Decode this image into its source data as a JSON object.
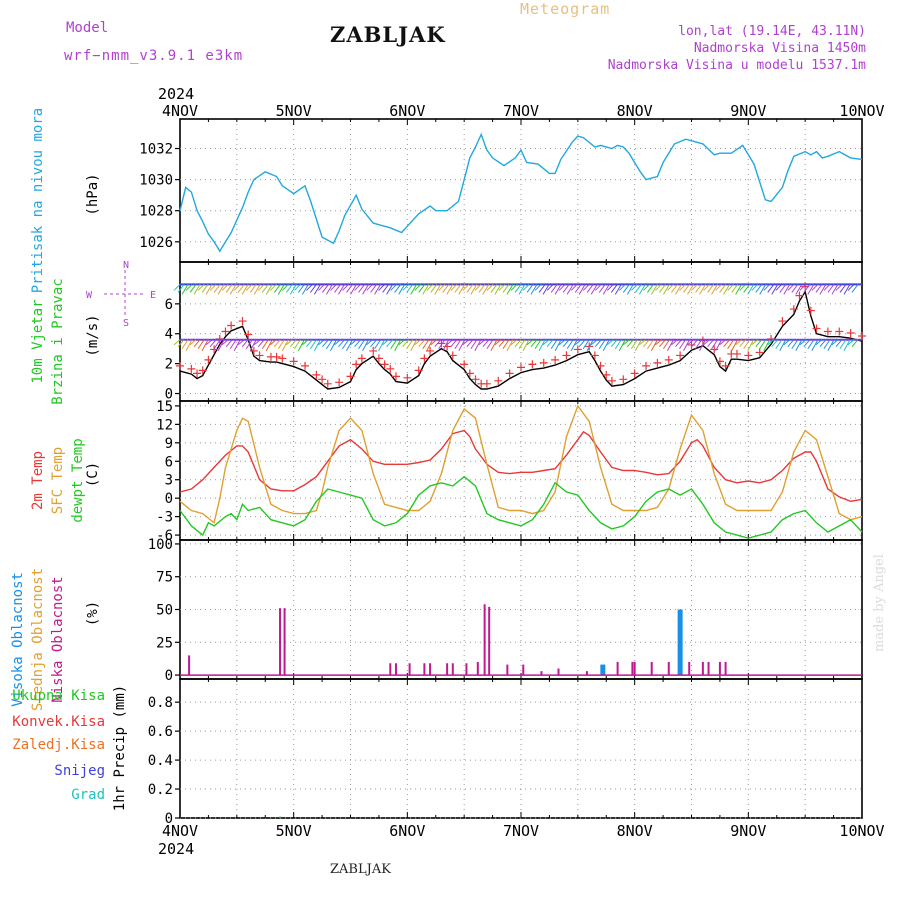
{
  "header": {
    "title": "ZABLJAK",
    "model_label": "Model",
    "model_name": "wrf−nmm_v3.9.1  e3km",
    "meteogram": "Meteogram",
    "lonlat": "lon,lat (19.14E, 43.11N)",
    "altitude": "Nadmorska Visina 1450m",
    "model_altitude": "Nadmorska Visina u modelu 1537.1m"
  },
  "footer": {
    "station": "ZABLJAK",
    "credit": "made by Angel"
  },
  "colors": {
    "pressure": "#22a8e0",
    "wind_green": "#22c822",
    "wind_red": "#e83838",
    "wind_purple": "#b040d0",
    "temp2m": "#e83838",
    "sfc": "#e0a030",
    "dewpt": "#22c822",
    "cloud_high": "#1890e8",
    "cloud_mid": "#e0a030",
    "cloud_low": "#c01890",
    "precip_total": "#22c822",
    "precip_conv": "#e83838",
    "precip_frz": "#f07020",
    "snow": "#4040e0",
    "hail": "#20c0c0"
  },
  "chart_data": [
    {
      "type": "line",
      "panel": "pressure",
      "x_ticks": [
        "4NOV",
        "5NOV",
        "6NOV",
        "7NOV",
        "8NOV",
        "9NOV",
        "10NOV"
      ],
      "year": "2024",
      "xlim": [
        0,
        6
      ],
      "ylabel_lines": [
        "Pritisak na nivou mora"
      ],
      "unit": "(hPa)",
      "yticks": [
        "1026",
        "1028",
        "1030",
        "1032"
      ],
      "ylim": [
        1024.7,
        1033.9
      ],
      "series": [
        {
          "name": "Pritisak na nivou mora",
          "x": [
            0,
            0.05,
            0.1,
            0.15,
            0.2,
            0.25,
            0.3,
            0.35,
            0.45,
            0.55,
            0.6,
            0.65,
            0.75,
            0.85,
            0.9,
            1.0,
            1.1,
            1.15,
            1.25,
            1.35,
            1.4,
            1.45,
            1.55,
            1.6,
            1.7,
            1.75,
            1.85,
            1.95,
            2.1,
            2.2,
            2.25,
            2.35,
            2.45,
            2.5,
            2.55,
            2.6,
            2.65,
            2.7,
            2.75,
            2.85,
            2.95,
            3.0,
            3.05,
            3.15,
            3.25,
            3.3,
            3.35,
            3.45,
            3.5,
            3.55,
            3.65,
            3.7,
            3.8,
            3.85,
            3.9,
            3.95,
            4.05,
            4.1,
            4.2,
            4.25,
            4.35,
            4.45,
            4.55,
            4.6,
            4.7,
            4.75,
            4.85,
            4.95,
            5.05,
            5.15,
            5.2,
            5.3,
            5.35,
            5.4,
            5.5,
            5.55,
            5.6,
            5.65,
            5.7,
            5.8,
            5.9,
            6.0
          ],
          "y": [
            1028.0,
            1029.5,
            1029.2,
            1028.0,
            1027.3,
            1026.5,
            1026.0,
            1025.4,
            1026.6,
            1028.2,
            1029.2,
            1030.0,
            1030.5,
            1030.2,
            1029.6,
            1029.1,
            1029.6,
            1028.6,
            1026.3,
            1025.9,
            1026.7,
            1027.7,
            1029.0,
            1028.1,
            1027.2,
            1027.1,
            1026.9,
            1026.6,
            1027.8,
            1028.3,
            1028.0,
            1028.0,
            1028.6,
            1030.0,
            1031.4,
            1032.1,
            1032.9,
            1031.9,
            1031.4,
            1030.9,
            1031.4,
            1031.9,
            1031.1,
            1031.0,
            1030.4,
            1030.4,
            1031.3,
            1032.4,
            1032.8,
            1032.7,
            1032.1,
            1032.2,
            1032.0,
            1032.2,
            1032.1,
            1031.7,
            1030.5,
            1030.0,
            1030.2,
            1031.1,
            1032.3,
            1032.6,
            1032.4,
            1032.3,
            1031.6,
            1031.7,
            1031.7,
            1032.2,
            1031.0,
            1028.7,
            1028.6,
            1029.5,
            1030.6,
            1031.5,
            1031.8,
            1031.6,
            1031.8,
            1031.4,
            1031.5,
            1031.8,
            1031.4,
            1031.3
          ]
        }
      ]
    },
    {
      "type": "line",
      "panel": "wind",
      "ylabel_lines": [
        "10m Vjetar",
        "Brzina i Pravac"
      ],
      "unit": "(m/s)",
      "compass": {
        "n": "N",
        "s": "S",
        "e": "E",
        "w": "W"
      },
      "yticks": [
        "0",
        "2",
        "4",
        "6"
      ],
      "ylim": [
        -0.5,
        8.8
      ],
      "series": [
        {
          "name": "Brzina",
          "x": [
            0,
            0.1,
            0.15,
            0.2,
            0.25,
            0.3,
            0.35,
            0.4,
            0.45,
            0.55,
            0.6,
            0.65,
            0.7,
            0.8,
            0.85,
            0.9,
            1.0,
            1.1,
            1.2,
            1.25,
            1.3,
            1.4,
            1.5,
            1.55,
            1.6,
            1.7,
            1.75,
            1.8,
            1.85,
            1.9,
            2.0,
            2.1,
            2.15,
            2.2,
            2.3,
            2.35,
            2.4,
            2.5,
            2.55,
            2.6,
            2.65,
            2.7,
            2.8,
            2.9,
            3.0,
            3.1,
            3.2,
            3.3,
            3.4,
            3.5,
            3.6,
            3.65,
            3.7,
            3.75,
            3.8,
            3.9,
            4.0,
            4.1,
            4.2,
            4.3,
            4.4,
            4.5,
            4.6,
            4.7,
            4.75,
            4.8,
            4.85,
            4.9,
            5.0,
            5.1,
            5.2,
            5.3,
            5.4,
            5.45,
            5.5,
            5.55,
            5.6,
            5.7,
            5.8,
            5.9,
            6.0
          ],
          "y": [
            1.5,
            1.3,
            1.0,
            1.2,
            1.9,
            2.6,
            3.3,
            3.8,
            4.2,
            4.5,
            3.6,
            2.5,
            2.2,
            2.1,
            2.1,
            2.0,
            1.8,
            1.5,
            0.9,
            0.6,
            0.3,
            0.4,
            0.8,
            1.6,
            2.0,
            2.5,
            2.0,
            1.6,
            1.3,
            0.8,
            0.7,
            1.2,
            2.0,
            2.5,
            3.0,
            2.8,
            2.2,
            1.6,
            1.0,
            0.6,
            0.3,
            0.3,
            0.5,
            1.0,
            1.4,
            1.6,
            1.7,
            1.9,
            2.2,
            2.6,
            2.8,
            2.2,
            1.5,
            0.9,
            0.5,
            0.6,
            1.0,
            1.5,
            1.7,
            1.9,
            2.2,
            2.9,
            3.2,
            2.6,
            1.8,
            1.5,
            2.3,
            2.3,
            2.2,
            2.4,
            3.3,
            4.5,
            5.3,
            6.2,
            6.8,
            5.2,
            4.0,
            3.8,
            3.8,
            3.7,
            3.5
          ]
        }
      ]
    },
    {
      "type": "line",
      "panel": "temperature",
      "ylabel_lines": [
        "2m Temp",
        "SFC Temp",
        "dewpt Temp"
      ],
      "unit": "(C)",
      "yticks": [
        "-6",
        "-3",
        "0",
        "3",
        "6",
        "9",
        "12",
        "15"
      ],
      "ylim": [
        -6.8,
        15.8
      ],
      "series": [
        {
          "name": "2m Temp",
          "x": [
            0,
            0.1,
            0.2,
            0.3,
            0.4,
            0.5,
            0.55,
            0.6,
            0.7,
            0.8,
            0.9,
            1.0,
            1.1,
            1.2,
            1.3,
            1.4,
            1.5,
            1.6,
            1.7,
            1.8,
            1.9,
            2.0,
            2.1,
            2.2,
            2.3,
            2.4,
            2.5,
            2.55,
            2.6,
            2.7,
            2.8,
            2.9,
            3.0,
            3.1,
            3.2,
            3.3,
            3.4,
            3.5,
            3.55,
            3.6,
            3.7,
            3.8,
            3.9,
            4.0,
            4.1,
            4.2,
            4.3,
            4.4,
            4.5,
            4.55,
            4.6,
            4.7,
            4.8,
            4.9,
            5.0,
            5.1,
            5.2,
            5.3,
            5.4,
            5.5,
            5.55,
            5.6,
            5.7,
            5.8,
            5.9,
            6.0
          ],
          "y": [
            1.0,
            1.5,
            3.0,
            5.0,
            7.0,
            8.5,
            8.5,
            7.5,
            3.0,
            1.5,
            1.2,
            1.2,
            2.2,
            3.5,
            6.0,
            8.5,
            9.5,
            8.0,
            6.0,
            5.5,
            5.5,
            5.5,
            5.8,
            6.2,
            8.0,
            10.5,
            11.0,
            10.0,
            8.0,
            5.5,
            4.2,
            4.0,
            4.2,
            4.2,
            4.5,
            4.8,
            7.0,
            9.5,
            10.8,
            10.2,
            7.5,
            5.0,
            4.5,
            4.5,
            4.2,
            3.8,
            4.0,
            6.0,
            9.0,
            9.5,
            8.5,
            5.0,
            3.0,
            2.5,
            2.8,
            2.5,
            3.0,
            4.5,
            6.5,
            7.5,
            7.5,
            6.0,
            1.5,
            0.2,
            -0.5,
            -0.2
          ]
        },
        {
          "name": "SFC Temp",
          "x": [
            0,
            0.1,
            0.2,
            0.3,
            0.35,
            0.4,
            0.5,
            0.55,
            0.6,
            0.7,
            0.8,
            0.9,
            1.0,
            1.1,
            1.2,
            1.25,
            1.3,
            1.4,
            1.5,
            1.6,
            1.7,
            1.8,
            1.9,
            2.0,
            2.1,
            2.2,
            2.3,
            2.4,
            2.5,
            2.6,
            2.7,
            2.8,
            2.9,
            3.0,
            3.1,
            3.2,
            3.3,
            3.4,
            3.5,
            3.6,
            3.7,
            3.8,
            3.9,
            4.0,
            4.1,
            4.2,
            4.3,
            4.4,
            4.5,
            4.6,
            4.7,
            4.8,
            4.9,
            5.0,
            5.1,
            5.2,
            5.3,
            5.4,
            5.5,
            5.6,
            5.7,
            5.8,
            5.9,
            6.0
          ],
          "y": [
            -0.5,
            -2.0,
            -2.5,
            -4.0,
            0.0,
            5.0,
            11.0,
            13.0,
            12.5,
            5.0,
            -1.0,
            -2.0,
            -2.5,
            -2.5,
            -2.0,
            1.0,
            5.0,
            11.0,
            13.0,
            11.0,
            4.0,
            -1.0,
            -1.5,
            -2.0,
            -2.0,
            -0.5,
            4.0,
            11.0,
            14.5,
            13.0,
            5.5,
            -1.5,
            -2.0,
            -2.0,
            -2.5,
            -2.0,
            1.0,
            10.0,
            15.0,
            12.5,
            5.0,
            -1.0,
            -2.0,
            -2.0,
            -2.0,
            -1.5,
            1.5,
            8.0,
            13.5,
            11.0,
            4.0,
            -1.0,
            -2.0,
            -2.0,
            -2.0,
            -2.0,
            1.0,
            7.5,
            11.0,
            9.5,
            3.5,
            -2.5,
            -3.5,
            -3.0
          ]
        },
        {
          "name": "dewpt Temp",
          "x": [
            0,
            0.1,
            0.2,
            0.25,
            0.3,
            0.4,
            0.45,
            0.5,
            0.55,
            0.6,
            0.7,
            0.8,
            0.9,
            1.0,
            1.1,
            1.2,
            1.3,
            1.4,
            1.5,
            1.6,
            1.7,
            1.8,
            1.9,
            2.0,
            2.1,
            2.2,
            2.3,
            2.4,
            2.5,
            2.6,
            2.7,
            2.8,
            2.9,
            3.0,
            3.1,
            3.2,
            3.3,
            3.4,
            3.5,
            3.6,
            3.7,
            3.8,
            3.9,
            4.0,
            4.1,
            4.2,
            4.3,
            4.4,
            4.5,
            4.6,
            4.7,
            4.8,
            4.9,
            5.0,
            5.1,
            5.2,
            5.3,
            5.4,
            5.5,
            5.6,
            5.7,
            5.8,
            5.9,
            6.0
          ],
          "y": [
            -2.0,
            -4.5,
            -6.0,
            -4.0,
            -4.5,
            -3.0,
            -2.5,
            -3.5,
            -1.0,
            -2.0,
            -1.5,
            -3.5,
            -4.0,
            -4.5,
            -3.5,
            -0.5,
            1.5,
            1.0,
            0.5,
            0.0,
            -3.5,
            -4.5,
            -4.0,
            -2.5,
            0.5,
            2.0,
            2.5,
            2.0,
            3.5,
            2.0,
            -2.5,
            -3.5,
            -4.0,
            -4.5,
            -3.5,
            -1.0,
            2.5,
            1.0,
            0.5,
            -2.0,
            -4.0,
            -5.0,
            -4.5,
            -3.0,
            -0.5,
            1.0,
            1.5,
            0.5,
            1.5,
            -1.0,
            -4.0,
            -5.5,
            -6.0,
            -6.5,
            -6.0,
            -5.5,
            -3.5,
            -2.5,
            -2.0,
            -4.0,
            -5.5,
            -4.5,
            -3.5,
            -5.5
          ]
        }
      ]
    },
    {
      "type": "bar",
      "panel": "cloudiness",
      "ylabel_lines": [
        "Visoka Oblacnost",
        "Srednja Oblacnost",
        "Niska Oblacnost"
      ],
      "unit": "(%)",
      "yticks": [
        "0",
        "25",
        "50",
        "75",
        "100"
      ],
      "ylim": [
        -3,
        103
      ],
      "series": [
        {
          "name": "Visoka Oblacnost",
          "x": [
            3.72,
            4.4
          ],
          "values": [
            8,
            50
          ]
        },
        {
          "name": "Niska Oblacnost",
          "x": [
            0.08,
            0.88,
            0.92,
            1.85,
            1.9,
            2.02,
            2.15,
            2.2,
            2.35,
            2.4,
            2.52,
            2.62,
            2.68,
            2.72,
            2.88,
            3.02,
            3.18,
            3.33,
            3.58,
            3.85,
            3.98,
            4.0,
            4.15,
            4.3,
            4.48,
            4.6,
            4.65,
            4.75,
            4.8
          ],
          "values": [
            15,
            51,
            51,
            9,
            9,
            9,
            9,
            9,
            9,
            9,
            9,
            10,
            54,
            52,
            8,
            8,
            3,
            5,
            3,
            10,
            10,
            10,
            10,
            10,
            10,
            10,
            10,
            10,
            10
          ]
        }
      ]
    },
    {
      "type": "bar",
      "panel": "precipitation",
      "ylabel_lines": [
        "1hr Precip (mm)"
      ],
      "legend": [
        "Ukupna Kisa",
        "Konvek.Kisa",
        "Zaledj.Kisa",
        "Snijeg",
        "Grad"
      ],
      "yticks": [
        "0",
        "0.2",
        "0.4",
        "0.6",
        "0.8"
      ],
      "ylim": [
        0,
        0.96
      ],
      "series": [
        {
          "name": "Ukupna Kisa",
          "x": [
            0.88
          ],
          "values": [
            0.01
          ]
        }
      ]
    }
  ]
}
